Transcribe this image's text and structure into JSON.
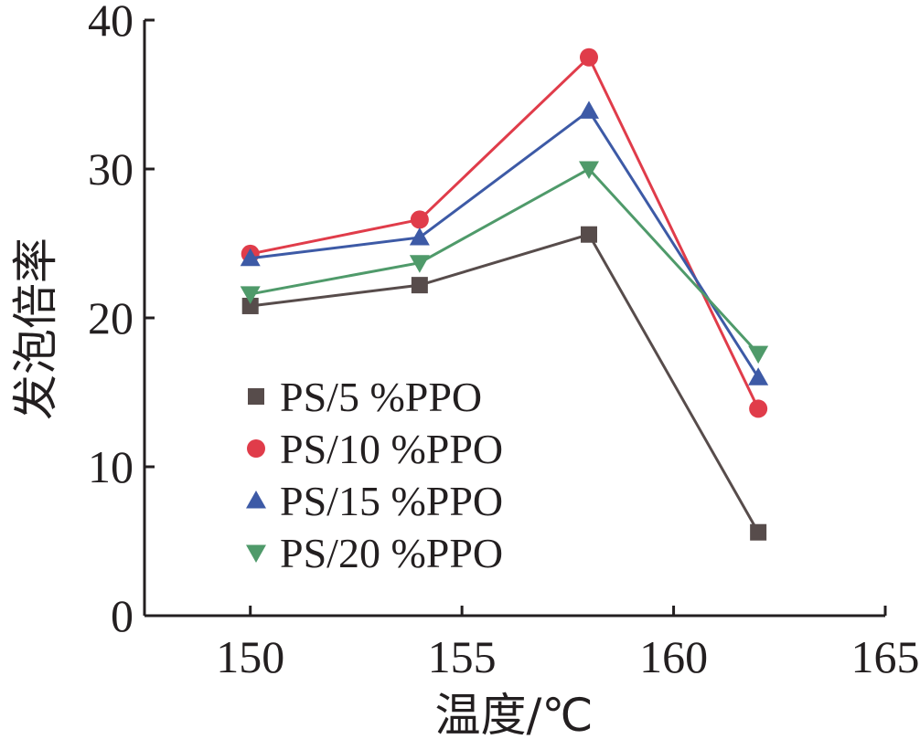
{
  "chart_data": {
    "type": "line",
    "xlabel": "温度/℃",
    "ylabel": "发泡倍率",
    "xlim": [
      147.5,
      165
    ],
    "ylim": [
      0,
      40
    ],
    "x_ticks": [
      150,
      155,
      160,
      165
    ],
    "y_ticks": [
      0,
      10,
      20,
      30,
      40
    ],
    "x": [
      150,
      154,
      158,
      162
    ],
    "legend_position": "left",
    "series": [
      {
        "name": "PS/5 %PPO",
        "marker": "square",
        "color": "#574c4b",
        "values": [
          20.8,
          22.2,
          25.6,
          5.6
        ]
      },
      {
        "name": "PS/10 %PPO",
        "marker": "circle",
        "color": "#e03c4a",
        "values": [
          24.3,
          26.6,
          37.5,
          13.9
        ]
      },
      {
        "name": "PS/15 %PPO",
        "marker": "triangle-up",
        "color": "#3d5aa6",
        "values": [
          24.0,
          25.4,
          33.9,
          16.0
        ]
      },
      {
        "name": "PS/20 %PPO",
        "marker": "triangle-down",
        "color": "#4f9a6a",
        "values": [
          21.6,
          23.7,
          30.0,
          17.6
        ]
      }
    ]
  }
}
